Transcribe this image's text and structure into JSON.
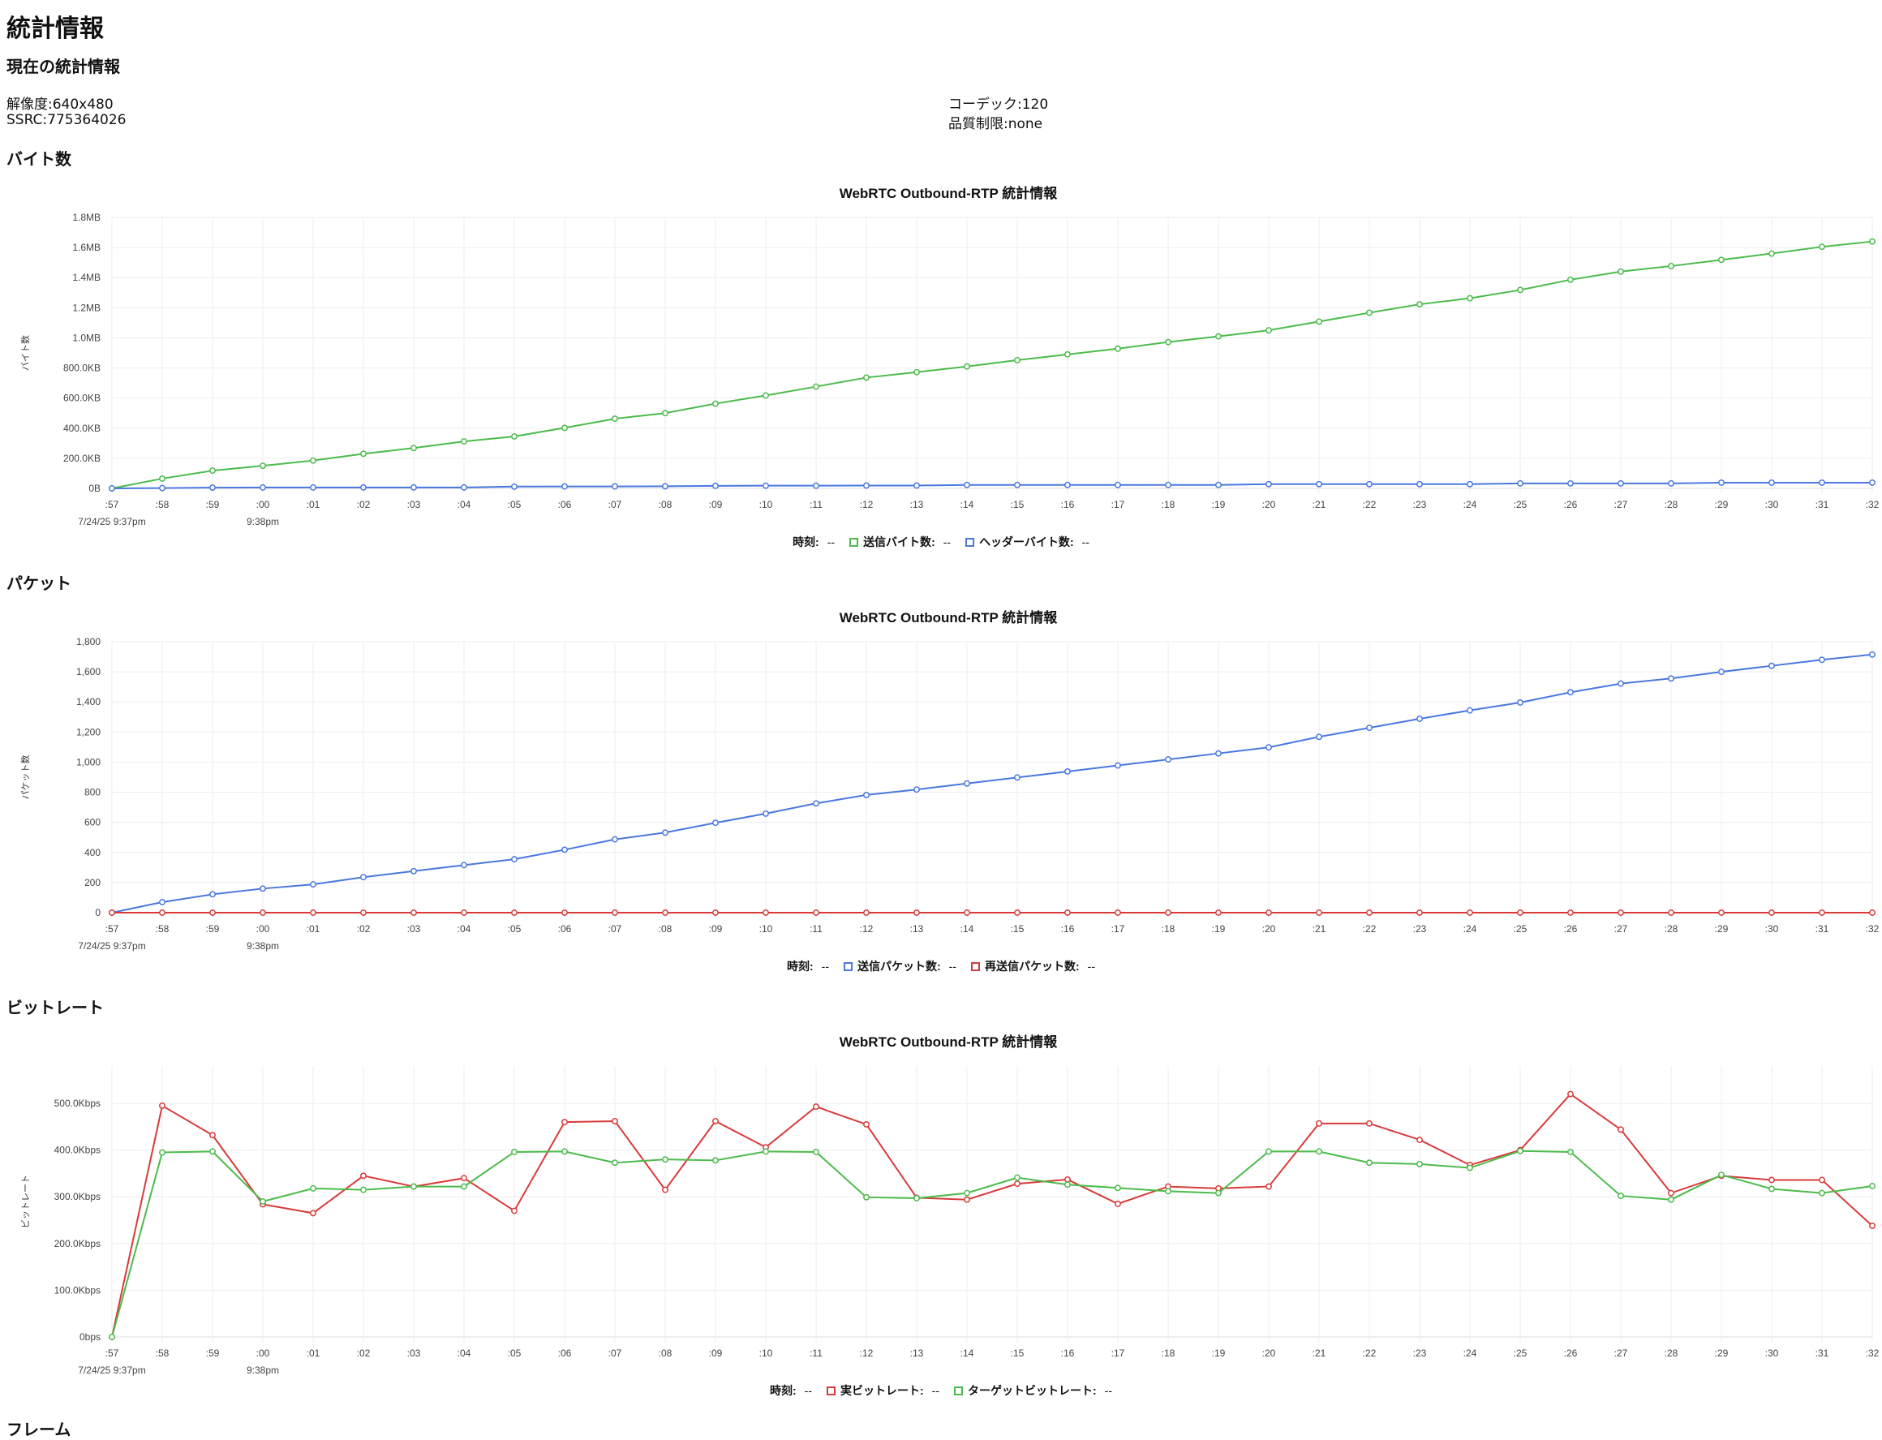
{
  "page": {
    "title": "統計情報",
    "current_heading": "現在の統計情報",
    "bytes_heading": "バイト数",
    "packets_heading": "パケット",
    "bitrate_heading": "ビットレート",
    "frames_heading": "フレーム"
  },
  "current_stats": {
    "resolution": "解像度:640x480",
    "ssrc": "SSRC:775364026",
    "codec": "コーデック:120",
    "quality_limit": "品質制限:none"
  },
  "colors": {
    "green": "#4cbb4c",
    "blue": "#4a78e0",
    "red": "#d83a3a",
    "grid": "#eeeeee"
  },
  "chart_data": [
    {
      "type": "line",
      "title": "WebRTC Outbound-RTP 統計情報",
      "ylabel": "バイト数",
      "x_tick_labels": [
        ":57",
        ":58",
        ":59",
        ":00",
        ":01",
        ":02",
        ":03",
        ":04",
        ":05",
        ":06",
        ":07",
        ":08",
        ":09",
        ":10",
        ":11",
        ":12",
        ":13",
        ":14",
        ":15",
        ":16",
        ":17",
        ":18",
        ":19",
        ":20",
        ":21",
        ":22",
        ":23",
        ":24",
        ":25",
        ":26",
        ":27",
        ":28",
        ":29",
        ":30",
        ":31",
        ":32"
      ],
      "x_sub_labels": [
        {
          "index": 0,
          "text": "7/24/25 9:37pm"
        },
        {
          "index": 3,
          "text": "9:38pm"
        }
      ],
      "y_tick_labels": [
        "0B",
        "200.0KB",
        "400.0KB",
        "600.0KB",
        "800.0KB",
        "1.0MB",
        "1.2MB",
        "1.4MB",
        "1.6MB",
        "1.8MB"
      ],
      "ylim": [
        0,
        1800
      ],
      "y_unit": "KB",
      "series": [
        {
          "name": "送信バイト数",
          "color": "#4cbb4c",
          "values": [
            0,
            65,
            118,
            150,
            185,
            230,
            268,
            312,
            345,
            402,
            463,
            500,
            563,
            617,
            676,
            736,
            772,
            810,
            852,
            890,
            928,
            972,
            1010,
            1050,
            1108,
            1167,
            1223,
            1263,
            1318,
            1386,
            1440,
            1477,
            1518,
            1560,
            1605,
            1640
          ]
        },
        {
          "name": "ヘッダーバイト数",
          "color": "#4a78e0",
          "values": [
            0,
            2,
            5,
            6,
            6,
            6,
            6,
            6,
            12,
            13,
            13,
            14,
            17,
            18,
            18,
            19,
            19,
            23,
            23,
            23,
            23,
            23,
            23,
            28,
            28,
            28,
            28,
            28,
            33,
            33,
            33,
            33,
            38,
            38,
            38,
            38
          ]
        }
      ],
      "legend": {
        "time_label": "時刻:",
        "time_value": "--",
        "values": [
          "--",
          "--"
        ]
      }
    },
    {
      "type": "line",
      "title": "WebRTC Outbound-RTP 統計情報",
      "ylabel": "パケット数",
      "x_tick_labels": [
        ":57",
        ":58",
        ":59",
        ":00",
        ":01",
        ":02",
        ":03",
        ":04",
        ":05",
        ":06",
        ":07",
        ":08",
        ":09",
        ":10",
        ":11",
        ":12",
        ":13",
        ":14",
        ":15",
        ":16",
        ":17",
        ":18",
        ":19",
        ":20",
        ":21",
        ":22",
        ":23",
        ":24",
        ":25",
        ":26",
        ":27",
        ":28",
        ":29",
        ":30",
        ":31",
        ":32"
      ],
      "x_sub_labels": [
        {
          "index": 0,
          "text": "7/24/25 9:37pm"
        },
        {
          "index": 3,
          "text": "9:38pm"
        }
      ],
      "y_tick_labels": [
        "0",
        "200",
        "400",
        "600",
        "800",
        "1,000",
        "1,200",
        "1,400",
        "1,600",
        "1,800"
      ],
      "ylim": [
        0,
        1800
      ],
      "series": [
        {
          "name": "送信パケット数",
          "color": "#4a78e0",
          "values": [
            0,
            70,
            122,
            160,
            188,
            236,
            276,
            316,
            355,
            418,
            487,
            532,
            597,
            658,
            726,
            782,
            818,
            858,
            898,
            938,
            978,
            1018,
            1058,
            1098,
            1168,
            1228,
            1288,
            1344,
            1396,
            1464,
            1522,
            1556,
            1600,
            1640,
            1680,
            1715
          ]
        },
        {
          "name": "再送信パケット数",
          "color": "#d83a3a",
          "values": [
            0,
            0,
            0,
            0,
            0,
            0,
            0,
            0,
            0,
            0,
            0,
            0,
            0,
            0,
            0,
            0,
            0,
            0,
            0,
            0,
            0,
            0,
            0,
            0,
            0,
            0,
            0,
            0,
            0,
            0,
            0,
            0,
            0,
            0,
            0,
            0
          ]
        }
      ],
      "legend": {
        "time_label": "時刻:",
        "time_value": "--",
        "values": [
          "--",
          "--"
        ]
      }
    },
    {
      "type": "line",
      "title": "WebRTC Outbound-RTP 統計情報",
      "ylabel": "ビットレート",
      "x_tick_labels": [
        ":57",
        ":58",
        ":59",
        ":00",
        ":01",
        ":02",
        ":03",
        ":04",
        ":05",
        ":06",
        ":07",
        ":08",
        ":09",
        ":10",
        ":11",
        ":12",
        ":13",
        ":14",
        ":15",
        ":16",
        ":17",
        ":18",
        ":19",
        ":20",
        ":21",
        ":22",
        ":23",
        ":24",
        ":25",
        ":26",
        ":27",
        ":28",
        ":29",
        ":30",
        ":31",
        ":32"
      ],
      "x_sub_labels": [
        {
          "index": 0,
          "text": "7/24/25 9:37pm"
        },
        {
          "index": 3,
          "text": "9:38pm"
        }
      ],
      "y_tick_labels": [
        "0bps",
        "100.0Kbps",
        "200.0Kbps",
        "300.0Kbps",
        "400.0Kbps",
        "500.0Kbps"
      ],
      "ylim": [
        0,
        580
      ],
      "y_unit": "Kbps",
      "series": [
        {
          "name": "実ビットレート",
          "color": "#d83a3a",
          "values": [
            0,
            495,
            432,
            284,
            265,
            345,
            322,
            340,
            270,
            460,
            462,
            315,
            462,
            406,
            493,
            455,
            298,
            294,
            328,
            337,
            285,
            322,
            318,
            322,
            457,
            457,
            422,
            368,
            400,
            520,
            444,
            308,
            345,
            336,
            336,
            238
          ]
        },
        {
          "name": "ターゲットビットレート",
          "color": "#4cbb4c",
          "values": [
            0,
            395,
            397,
            290,
            318,
            315,
            322,
            322,
            396,
            397,
            373,
            380,
            378,
            397,
            396,
            299,
            297,
            308,
            341,
            326,
            319,
            312,
            308,
            397,
            397,
            373,
            370,
            362,
            398,
            396,
            302,
            294,
            347,
            317,
            308,
            323
          ]
        }
      ],
      "legend": {
        "time_label": "時刻:",
        "time_value": "--",
        "values": [
          "--",
          "--"
        ]
      }
    }
  ]
}
